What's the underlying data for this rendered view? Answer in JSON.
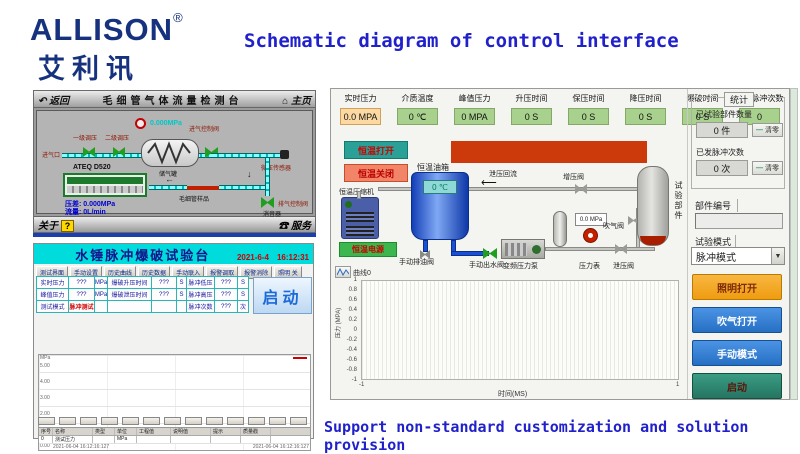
{
  "brand": {
    "logo": "ALLISON",
    "reg": "®",
    "logo_cn": "艾利讯"
  },
  "heading": "Schematic diagram of control interface",
  "footer_text": "Support non-standard customization and solution provision",
  "hmi_flow": {
    "back_icon": "↶",
    "back": "返回",
    "title": "毛细管气体流量检测台",
    "home_icon": "⌂",
    "home": "主页",
    "inlet": "进气口",
    "valve1": "一级调压",
    "valve2": "二级调压",
    "gauge_value": "0.000MPa",
    "tank": "储气罐",
    "inlet_ctrl": "进气控制阀",
    "sensor": "微压传感器",
    "device": "ATEQ D520",
    "sample": "毛细管样品",
    "exhaust": "排气控制阀",
    "muffler": "消音器",
    "pressure_line": "压差: 0.000MPa",
    "flow_line": "流量: 0L/min",
    "about": "关于",
    "help": "?",
    "service_icon": "☎",
    "service": "服务"
  },
  "hmi_test": {
    "title": "水锤脉冲爆破试验台",
    "datetime": "2021-6-4　16:12:31",
    "menu": [
      "测试界面",
      "手动设置",
      "历史曲线",
      "历史数据",
      "手动联入",
      "报警调取",
      "报警消除",
      "照明 关"
    ],
    "grid_rows": [
      [
        "实时压力",
        "???",
        "MPa",
        "爆破升压时间",
        "???",
        "S",
        "脉冲低压",
        "???",
        "S"
      ],
      [
        "峰值压力",
        "???",
        "MPa",
        "爆破泄压时间",
        "???",
        "S",
        "脉冲高压",
        "???",
        "S"
      ],
      [
        "测试模式",
        "脉冲测试",
        "",
        "",
        "",
        "",
        "脉冲次数",
        "???",
        "次"
      ]
    ],
    "start_label": "启动",
    "chart": {
      "unit": "MPa",
      "y_ticks": [
        "5.00",
        "4.00",
        "3.00",
        "2.00",
        "1.00",
        "0.00"
      ],
      "ts_left": "2021-06-04 16:12:16:127",
      "ts_right": "2021-06-04 16:12:16:127"
    },
    "toolbar_count": 13,
    "table_headers": [
      "序号",
      "名称",
      "类型",
      "单位",
      "工程值",
      "说明值",
      "提示",
      "质量戳"
    ],
    "table_row": [
      "0",
      "测试压力",
      "",
      "MPa",
      "",
      "",
      "",
      ""
    ]
  },
  "panel": {
    "fields": [
      {
        "label": "实时压力",
        "value": "0.0 MPA",
        "highlight": true
      },
      {
        "label": "介质温度",
        "value": "0 ℃"
      },
      {
        "label": "峰值压力",
        "value": "0 MPA"
      },
      {
        "label": "升压时间",
        "value": "0 S"
      },
      {
        "label": "保压时间",
        "value": "0 S"
      },
      {
        "label": "降压时间",
        "value": "0 S"
      },
      {
        "label": "爆破时间",
        "value": "0 S"
      },
      {
        "label": "已发脉冲次数",
        "value": "0"
      }
    ],
    "diagram": {
      "btn_open": "恒温打开",
      "btn_close": "恒温关闭",
      "btn_power": "恒温电源",
      "compressor": "恒温压缩机",
      "oil_tank": "恒温油箱",
      "tank_temp": "0 ℃",
      "drain_valve": "手动排油阀",
      "out_valve": "手动出水阀",
      "pump": "变频压力泵",
      "mini_gauge": "0.0 MPa",
      "gauge": "压力表",
      "relief": "泄压阀",
      "blow": "吹气阀",
      "booster": "增压阀",
      "backflow": "泄压回流",
      "test_part": "试验部件"
    },
    "chart": {
      "legend": "曲线0",
      "ylabel": "压力 (MPA)",
      "xlabel": "时间(MS)",
      "y_ticks": [
        "1",
        "0.8",
        "0.6",
        "0.4",
        "0.2",
        "0",
        "-0.2",
        "-0.4",
        "-0.6",
        "-0.8",
        "-1"
      ],
      "x_ticks": [
        "-1",
        "1"
      ]
    },
    "sidebar": {
      "stats_title": "统计",
      "count_label": "已试验部件数量",
      "count_value": "0 件",
      "clear1": "清零",
      "pulse_label": "已发脉冲次数",
      "pulse_value": "0 次",
      "clear2": "清零",
      "part_no_label": "部件编号",
      "mode_label": "试验模式",
      "mode_value": "脉冲模式",
      "caret": "▼",
      "buttons": [
        {
          "label": "照明打开",
          "type": "orange"
        },
        {
          "label": "吹气打开",
          "type": "blue"
        },
        {
          "label": "手动模式",
          "type": "blue"
        },
        {
          "label": "启动",
          "type": "teal"
        }
      ]
    }
  }
}
